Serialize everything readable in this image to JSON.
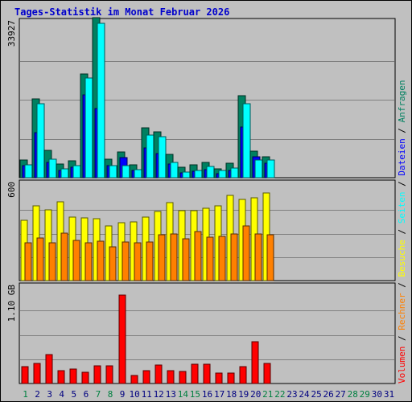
{
  "chart_data": {
    "type": "bar",
    "title": "Tages-Statistik im Monat Februar 2026",
    "colors": {
      "anfragen": "#008060",
      "dateien": "#0000ff",
      "seiten": "#00ffff",
      "besuche": "#ffff00",
      "rechner": "#ff8000",
      "volumen": "#ff0000",
      "weekend_day": "#008040",
      "weekday": "#000080",
      "title": "#0000cc"
    },
    "days": [
      "1",
      "2",
      "3",
      "4",
      "5",
      "6",
      "7",
      "8",
      "9",
      "10",
      "11",
      "12",
      "13",
      "14",
      "15",
      "16",
      "17",
      "18",
      "19",
      "20",
      "21",
      "22",
      "23",
      "24",
      "25",
      "26",
      "27",
      "28",
      "29",
      "30",
      "31"
    ],
    "weekend_days": [
      "1",
      "7",
      "8",
      "14",
      "15",
      "21",
      "22",
      "28",
      "29"
    ],
    "legend": {
      "anfragen": "Anfragen",
      "dateien": "Dateien",
      "seiten": "Seiten",
      "besuche": "Besuche",
      "rechner": "Rechner",
      "volumen": "Volumen",
      "separator": "/"
    },
    "panels": [
      {
        "name": "Anfragen / Dateien / Seiten",
        "max_label": "33927",
        "ylim": [
          0,
          33927
        ],
        "series": [
          {
            "name": "Anfragen",
            "key": "anfragen",
            "values": [
              3800,
              17200,
              6000,
              3000,
              3600,
              22500,
              34800,
              4100,
              5600,
              2800,
              10800,
              9900,
              5000,
              2200,
              2800,
              3400,
              2000,
              3100,
              17800,
              5800,
              4600,
              0,
              0,
              0,
              0,
              0,
              0,
              0,
              0,
              0,
              0
            ]
          },
          {
            "name": "Dateien",
            "key": "dateien",
            "values": [
              2700,
              9800,
              3400,
              1600,
              2200,
              18000,
              15000,
              2600,
              4400,
              1500,
              6500,
              5200,
              2900,
              1000,
              1400,
              1700,
              800,
              1500,
              11000,
              4500,
              3200,
              0,
              0,
              0,
              0,
              0,
              0,
              0,
              0,
              0,
              0
            ]
          },
          {
            "name": "Seiten",
            "key": "seiten",
            "values": [
              2800,
              16100,
              4000,
              2000,
              2700,
              21700,
              33600,
              2600,
              2600,
              1800,
              9200,
              8900,
              3300,
              1200,
              1600,
              2400,
              1500,
              2100,
              16100,
              3800,
              3900,
              0,
              0,
              0,
              0,
              0,
              0,
              0,
              0,
              0,
              0
            ]
          }
        ]
      },
      {
        "name": "Besuche / Rechner",
        "max_label": "600",
        "ylim": [
          0,
          600
        ],
        "series": [
          {
            "name": "Besuche",
            "key": "besuche",
            "values": [
              383,
              475,
              452,
              501,
              407,
              398,
              393,
              351,
              370,
              374,
              406,
              443,
              497,
              447,
              444,
              463,
              475,
              542,
              516,
              527,
              560,
              0,
              0,
              0,
              0,
              0,
              0,
              0,
              0,
              0,
              0
            ]
          },
          {
            "name": "Rechner",
            "key": "rechner",
            "values": [
              243,
              271,
              243,
              304,
              258,
              243,
              252,
              216,
              245,
              241,
              247,
              293,
              297,
              266,
              312,
              275,
              284,
              296,
              351,
              295,
              290,
              0,
              0,
              0,
              0,
              0,
              0,
              0,
              0,
              0,
              0
            ]
          }
        ]
      },
      {
        "name": "Volumen",
        "max_label": "1.10 GB",
        "ylim": [
          0,
          1.1
        ],
        "series": [
          {
            "name": "Volumen",
            "key": "volumen",
            "values": [
              0.19,
              0.23,
              0.33,
              0.15,
              0.16,
              0.13,
              0.2,
              0.2,
              1.0,
              0.09,
              0.15,
              0.21,
              0.15,
              0.14,
              0.22,
              0.22,
              0.12,
              0.12,
              0.19,
              0.47,
              0.23,
              0,
              0,
              0,
              0,
              0,
              0,
              0,
              0,
              0,
              0
            ]
          }
        ]
      }
    ]
  }
}
